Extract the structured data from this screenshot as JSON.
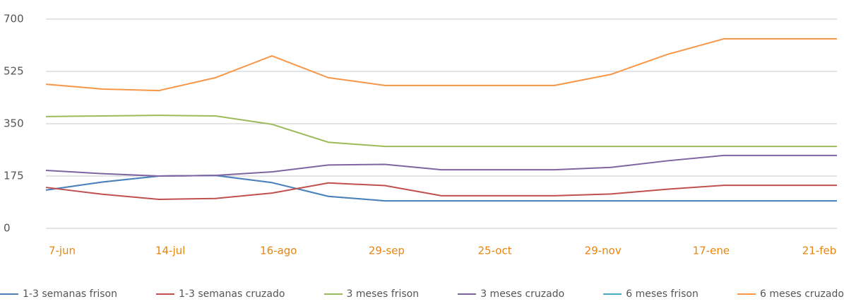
{
  "chart_data": {
    "type": "line",
    "categories": [
      "7-jun",
      null,
      "14-jul",
      null,
      "16-ago",
      null,
      "29-sep",
      null,
      "25-oct",
      null,
      "29-nov",
      null,
      "17-ene",
      null,
      "21-feb"
    ],
    "ylim": [
      0,
      700
    ],
    "yticks": [
      0,
      175,
      350,
      525,
      700
    ],
    "grid": true,
    "series": [
      {
        "name": "1-3 semanas frison",
        "color": "#4f81bd",
        "values": [
          128,
          155,
          175,
          177,
          153,
          107,
          92,
          92,
          92,
          92,
          92,
          92,
          92,
          92,
          92
        ]
      },
      {
        "name": "1-3 semanas cruzado",
        "color": "#c0504d",
        "values": [
          137,
          114,
          97,
          100,
          118,
          152,
          143,
          109,
          109,
          109,
          115,
          131,
          144,
          144,
          144
        ]
      },
      {
        "name": "3 meses frison",
        "color": "#9bbb59",
        "values": [
          374,
          376,
          378,
          376,
          348,
          288,
          274,
          274,
          274,
          274,
          274,
          274,
          274,
          274,
          274
        ]
      },
      {
        "name": "3 meses cruzado",
        "color": "#8064a2",
        "values": [
          194,
          183,
          175,
          177,
          189,
          212,
          214,
          196,
          196,
          196,
          204,
          226,
          244,
          244,
          244
        ]
      },
      {
        "name": "6 meses frison",
        "color": "#4bacc6",
        "values": [
          128,
          155,
          175,
          177,
          153,
          107,
          92,
          92,
          92,
          92,
          92,
          92,
          92,
          92,
          92
        ]
      },
      {
        "name": "6 meses cruzado",
        "color": "#f79646",
        "values": [
          482,
          466,
          461,
          504,
          577,
          504,
          478,
          478,
          478,
          478,
          515,
          582,
          634,
          634,
          634
        ]
      }
    ]
  }
}
